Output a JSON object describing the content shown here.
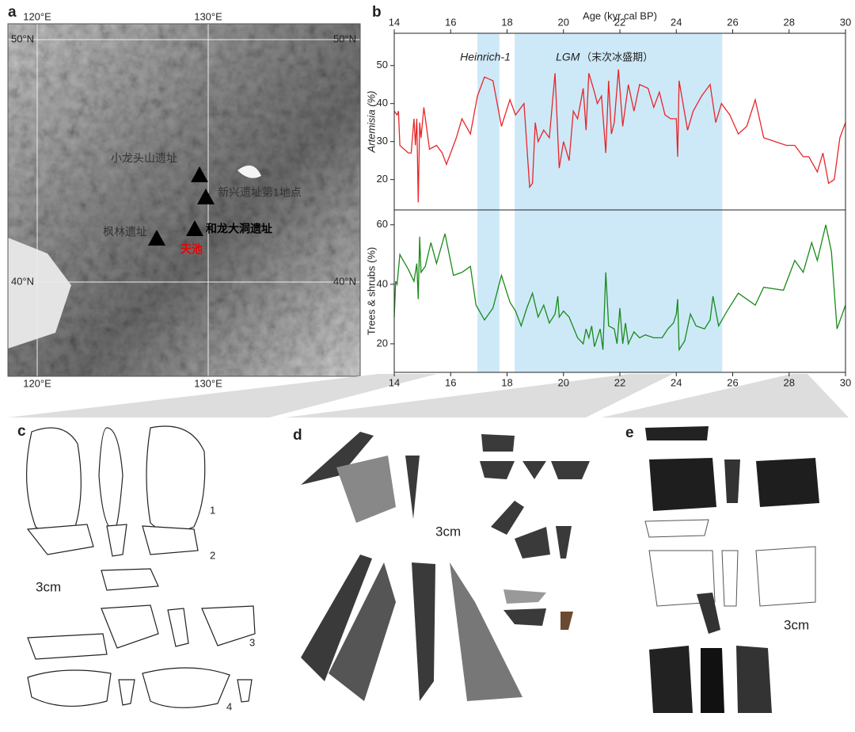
{
  "panels": [
    "a",
    "b",
    "c",
    "d",
    "e"
  ],
  "map": {
    "lon_labels": [
      "120°E",
      "130°E"
    ],
    "lat_labels": [
      "50°N",
      "40°N"
    ],
    "sites": [
      "小龙头山遗址",
      "新兴遗址第1地点",
      "枫林遗址",
      "和龙大洞遗址",
      "天池"
    ]
  },
  "artifacts": {
    "c": {
      "scale": "3cm",
      "numbers": [
        "1",
        "2",
        "3",
        "4"
      ]
    },
    "d": {
      "scale": "3cm"
    },
    "e": {
      "scale": "3cm"
    }
  },
  "chart_data": [
    {
      "type": "line",
      "xlabel": "Age (kyr cal BP)",
      "xaxis_position": "top",
      "ylabel": "Artemisia (%)",
      "color": "#e8262a",
      "xlim": [
        14,
        30
      ],
      "xticks": [
        14,
        16,
        18,
        20,
        22,
        24,
        26,
        28,
        30
      ],
      "ylim": [
        12,
        58.5
      ],
      "yticks": [
        20,
        30,
        40,
        50
      ],
      "highlights": [
        {
          "label": "Heinrich-1",
          "range": [
            16.95,
            17.73
          ]
        },
        {
          "label": "LGM",
          "label_note": "（末次冰盛期）",
          "range": [
            18.27,
            25.63
          ]
        }
      ],
      "x": [
        14,
        14.1,
        14.15,
        14.2,
        14.5,
        14.6,
        14.7,
        14.75,
        14.8,
        14.85,
        14.9,
        14.95,
        15.05,
        15.25,
        15.5,
        15.7,
        15.85,
        16.2,
        16.4,
        16.7,
        16.95,
        17.2,
        17.5,
        17.8,
        18.1,
        18.3,
        18.6,
        18.8,
        18.9,
        19.0,
        19.1,
        19.3,
        19.5,
        19.7,
        19.85,
        20.0,
        20.2,
        20.35,
        20.5,
        20.7,
        20.8,
        20.9,
        21.1,
        21.2,
        21.35,
        21.5,
        21.6,
        21.7,
        21.8,
        21.95,
        22.1,
        22.3,
        22.5,
        22.7,
        23.0,
        23.2,
        23.4,
        23.6,
        23.8,
        24.0,
        24.05,
        24.1,
        24.4,
        24.6,
        24.9,
        25.2,
        25.4,
        25.6,
        25.9,
        26.2,
        26.5,
        26.8,
        27.1,
        27.9,
        28.2,
        28.5,
        28.7,
        29.0,
        29.2,
        29.4,
        29.6,
        29.8,
        30
      ],
      "values": [
        38,
        37,
        38,
        29,
        27,
        27,
        36,
        29,
        36,
        14,
        35,
        31,
        39,
        28,
        29,
        27,
        24,
        31,
        36,
        32,
        42,
        47,
        46,
        34,
        41,
        37,
        40,
        18,
        19,
        35,
        30,
        33,
        31,
        48,
        23,
        30,
        25,
        38,
        36,
        44,
        33,
        48,
        43,
        40,
        42,
        27,
        46,
        32,
        35,
        49,
        34,
        45,
        38,
        45,
        44,
        39,
        43,
        37,
        36,
        36,
        26,
        46,
        33,
        38,
        42,
        45,
        35,
        40,
        37,
        32,
        34,
        41,
        31,
        29,
        29,
        26,
        26,
        22,
        27,
        19,
        20,
        31,
        35
      ]
    },
    {
      "type": "line",
      "xaxis_position": "bottom",
      "ylabel": "Trees & shrubs (%)",
      "color": "#1a8a1a",
      "xlim": [
        14,
        30
      ],
      "xticks": [
        14,
        16,
        18,
        20,
        22,
        24,
        26,
        28,
        30
      ],
      "ylim": [
        10.4,
        65
      ],
      "yticks": [
        20,
        40,
        60
      ],
      "x": [
        14,
        14.05,
        14.1,
        14.2,
        14.5,
        14.7,
        14.8,
        14.85,
        14.9,
        14.95,
        15.1,
        15.3,
        15.5,
        15.8,
        16.1,
        16.4,
        16.7,
        16.9,
        17.2,
        17.5,
        17.8,
        18.1,
        18.3,
        18.5,
        18.7,
        18.9,
        19.1,
        19.3,
        19.5,
        19.7,
        19.8,
        19.85,
        20.0,
        20.2,
        20.5,
        20.7,
        20.8,
        20.9,
        21.0,
        21.1,
        21.3,
        21.4,
        21.5,
        21.6,
        21.8,
        21.9,
        22.0,
        22.1,
        22.2,
        22.3,
        22.5,
        22.7,
        22.9,
        23.2,
        23.5,
        23.7,
        23.9,
        24.0,
        24.05,
        24.1,
        24.3,
        24.5,
        24.7,
        25.0,
        25.2,
        25.3,
        25.5,
        25.8,
        26.2,
        26.8,
        27.1,
        27.8,
        28.2,
        28.5,
        28.8,
        29.0,
        29.3,
        29.5,
        29.7,
        30
      ],
      "values": [
        29,
        41,
        40,
        50,
        45,
        41,
        47,
        35,
        56,
        44,
        46,
        54,
        47,
        57,
        43,
        44,
        46,
        33,
        28,
        32,
        43,
        34,
        31,
        26,
        32,
        37,
        29,
        33,
        27,
        30,
        36,
        29,
        31,
        29,
        22,
        20,
        25,
        22,
        26,
        19,
        25,
        18,
        44,
        26,
        25,
        20,
        32,
        20,
        27,
        20,
        24,
        22,
        23,
        22,
        22,
        25,
        27,
        30,
        35,
        18,
        21,
        30,
        26,
        25,
        28,
        36,
        26,
        31,
        37,
        33,
        39,
        38,
        48,
        44,
        54,
        48,
        60,
        51,
        25,
        33
      ]
    }
  ]
}
